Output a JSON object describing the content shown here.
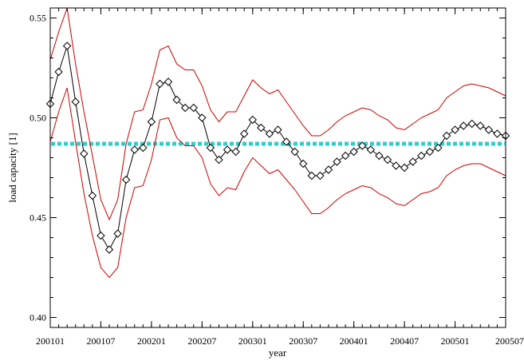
{
  "chart_data": {
    "type": "line",
    "xlabel": "year",
    "ylabel": "load capacity [1]",
    "x_ticks": [
      "200101",
      "200107",
      "200201",
      "200207",
      "200301",
      "200307",
      "200401",
      "200407",
      "200501",
      "200507"
    ],
    "y_ticks": [
      "0.40",
      "0.45",
      "0.50",
      "0.55"
    ],
    "xlim": [
      0,
      54
    ],
    "ylim": [
      0.395,
      0.555
    ],
    "grid": false,
    "x": [
      0,
      1,
      2,
      3,
      4,
      5,
      6,
      7,
      8,
      9,
      10,
      11,
      12,
      13,
      14,
      15,
      16,
      17,
      18,
      19,
      20,
      21,
      22,
      23,
      24,
      25,
      26,
      27,
      28,
      29,
      30,
      31,
      32,
      33,
      34,
      35,
      36,
      37,
      38,
      39,
      40,
      41,
      42,
      43,
      44,
      45,
      46,
      47,
      48,
      49,
      50,
      51,
      52,
      53,
      54
    ],
    "series": [
      {
        "color": "#000000",
        "marker": "diamond",
        "values": [
          0.507,
          0.523,
          0.536,
          0.508,
          0.482,
          0.461,
          0.441,
          0.434,
          0.442,
          0.469,
          0.484,
          0.485,
          0.498,
          0.517,
          0.518,
          0.509,
          0.505,
          0.505,
          0.5,
          0.485,
          0.479,
          0.484,
          0.483,
          0.492,
          0.499,
          0.495,
          0.492,
          0.494,
          0.488,
          0.483,
          0.477,
          0.471,
          0.471,
          0.474,
          0.478,
          0.481,
          0.483,
          0.486,
          0.484,
          0.481,
          0.479,
          0.476,
          0.475,
          0.478,
          0.481,
          0.483,
          0.485,
          0.491,
          0.494,
          0.496,
          0.497,
          0.496,
          0.494,
          0.492,
          0.491
        ]
      },
      {
        "color": "#cc0000",
        "values": [
          0.529,
          0.543,
          0.555,
          0.527,
          0.503,
          0.481,
          0.459,
          0.449,
          0.459,
          0.487,
          0.503,
          0.504,
          0.517,
          0.534,
          0.536,
          0.527,
          0.524,
          0.524,
          0.516,
          0.504,
          0.498,
          0.503,
          0.503,
          0.511,
          0.519,
          0.515,
          0.512,
          0.514,
          0.508,
          0.502,
          0.496,
          0.491,
          0.491,
          0.494,
          0.498,
          0.501,
          0.503,
          0.505,
          0.504,
          0.501,
          0.499,
          0.495,
          0.494,
          0.497,
          0.5,
          0.502,
          0.504,
          0.51,
          0.513,
          0.516,
          0.517,
          0.516,
          0.515,
          0.513,
          0.511
        ]
      },
      {
        "color": "#cc0000",
        "values": [
          0.488,
          0.503,
          0.515,
          0.488,
          0.462,
          0.441,
          0.425,
          0.42,
          0.425,
          0.45,
          0.465,
          0.466,
          0.479,
          0.499,
          0.5,
          0.49,
          0.486,
          0.486,
          0.48,
          0.467,
          0.461,
          0.465,
          0.464,
          0.473,
          0.48,
          0.476,
          0.472,
          0.474,
          0.469,
          0.464,
          0.458,
          0.452,
          0.452,
          0.455,
          0.459,
          0.462,
          0.464,
          0.466,
          0.465,
          0.462,
          0.46,
          0.457,
          0.456,
          0.459,
          0.462,
          0.463,
          0.465,
          0.471,
          0.474,
          0.476,
          0.477,
          0.477,
          0.475,
          0.473,
          0.471
        ]
      }
    ],
    "reference_line": {
      "value": 0.487,
      "color": "#33cccc",
      "style": "dotted"
    }
  }
}
